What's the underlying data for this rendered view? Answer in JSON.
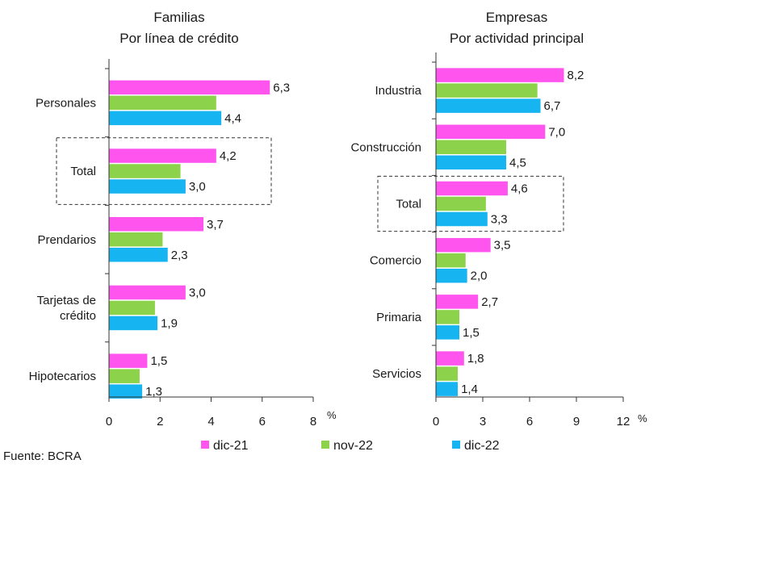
{
  "chart_data": [
    {
      "type": "bar",
      "orientation": "horizontal",
      "title": "Familias",
      "subtitle": "Por línea de crédito",
      "categories": [
        "Personales",
        "Total",
        "Prendarios",
        "Tarjetas de crédito",
        "Hipotecarios"
      ],
      "category_lines": [
        [
          "Personales"
        ],
        [
          "Total"
        ],
        [
          "Prendarios"
        ],
        [
          "Tarjetas de",
          "crédito"
        ],
        [
          "Hipotecarios"
        ]
      ],
      "highlighted_category": "Total",
      "series": [
        {
          "name": "dic-21",
          "values": [
            6.3,
            4.2,
            3.7,
            3.0,
            1.5
          ]
        },
        {
          "name": "nov-22",
          "values": [
            4.2,
            2.8,
            2.1,
            1.8,
            1.2
          ]
        },
        {
          "name": "dic-22",
          "values": [
            4.4,
            3.0,
            2.3,
            1.9,
            1.3
          ]
        }
      ],
      "labeled_series": [
        "dic-21",
        "dic-22"
      ],
      "value_labels": {
        "dic-21": [
          "6,3",
          "4,2",
          "3,7",
          "3,0",
          "1,5"
        ],
        "dic-22": [
          "4,4",
          "3,0",
          "2,3",
          "1,9",
          "1,3"
        ]
      },
      "xlim": [
        0,
        8
      ],
      "xticks": [
        "0",
        "2",
        "4",
        "6",
        "8"
      ],
      "xlabel": "%"
    },
    {
      "type": "bar",
      "orientation": "horizontal",
      "title": "Empresas",
      "subtitle": "Por actividad principal",
      "categories": [
        "Industria",
        "Construcción",
        "Total",
        "Comercio",
        "Primaria",
        "Servicios"
      ],
      "category_lines": [
        [
          "Industria"
        ],
        [
          "Construcción"
        ],
        [
          "Total"
        ],
        [
          "Comercio"
        ],
        [
          "Primaria"
        ],
        [
          "Servicios"
        ]
      ],
      "highlighted_category": "Total",
      "series": [
        {
          "name": "dic-21",
          "values": [
            8.2,
            7.0,
            4.6,
            3.5,
            2.7,
            1.8
          ]
        },
        {
          "name": "nov-22",
          "values": [
            6.5,
            4.5,
            3.2,
            1.9,
            1.5,
            1.4
          ]
        },
        {
          "name": "dic-22",
          "values": [
            6.7,
            4.5,
            3.3,
            2.0,
            1.5,
            1.4
          ]
        }
      ],
      "labeled_series": [
        "dic-21",
        "dic-22"
      ],
      "value_labels": {
        "dic-21": [
          "8,2",
          "7,0",
          "4,6",
          "3,5",
          "2,7",
          "1,8"
        ],
        "dic-22": [
          "6,7",
          "4,5",
          "3,3",
          "2,0",
          "1,5",
          "1,4"
        ]
      },
      "xlim": [
        0,
        12
      ],
      "xticks": [
        "0",
        "3",
        "6",
        "9",
        "12"
      ],
      "xlabel": "%"
    }
  ],
  "legend": [
    {
      "name": "dic-21",
      "color": "#ff55ee"
    },
    {
      "name": "nov-22",
      "color": "#8cd24a"
    },
    {
      "name": "dic-22",
      "color": "#16b4f0"
    }
  ],
  "colors": {
    "dic-21": "#ff55ee",
    "nov-22": "#8cd24a",
    "dic-22": "#16b4f0",
    "axis": "#333333"
  },
  "source": "Fuente: BCRA"
}
